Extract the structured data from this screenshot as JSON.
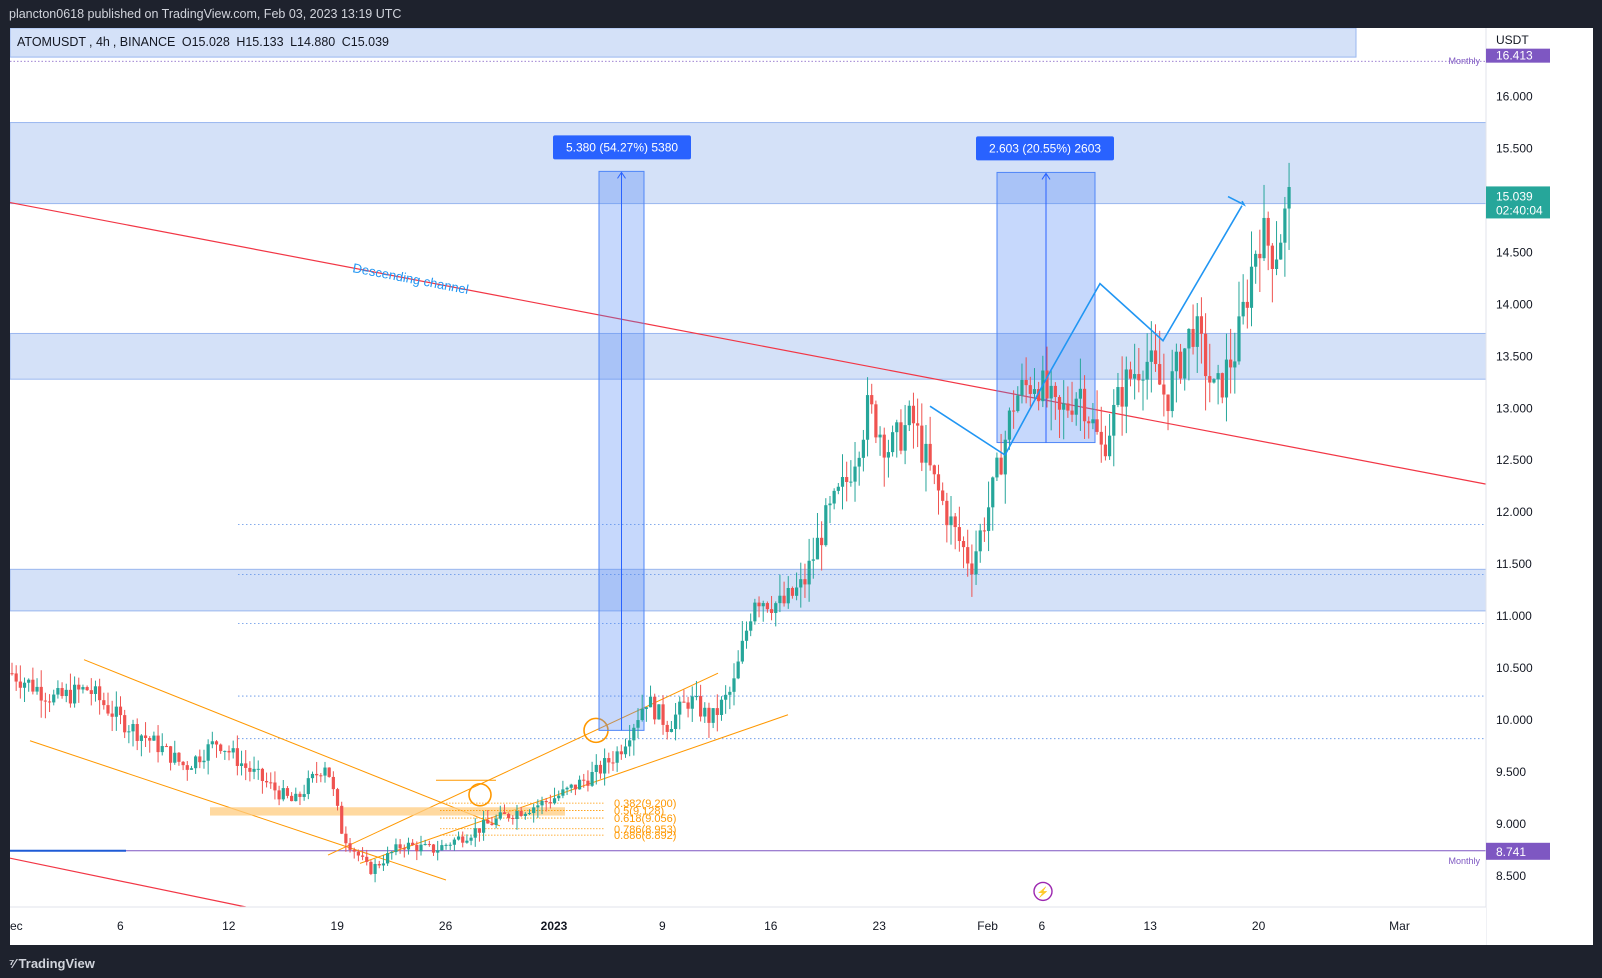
{
  "header": {
    "text": "plancton0618 published on TradingView.com, Feb 03, 2023 13:19 UTC"
  },
  "footer": {
    "brand": "TradingView"
  },
  "legend": {
    "symbol": "ATOMUSDT",
    "interval": "4h",
    "exchange": "BINANCE",
    "open": "O15.028",
    "high": "H15.133",
    "low": "L14.880",
    "close": "C15.039"
  },
  "axis": {
    "currency": "USDT",
    "last_price": "15.039",
    "countdown": "02:40:04",
    "monthly_low_value": "8.741",
    "monthly_high_value": "16.413",
    "monthly_label": "Monthly"
  },
  "colors": {
    "up": "#26a69a",
    "down": "#ef5350",
    "zone_fill": "#c5d7f5",
    "zone_border": "#9ab7ef",
    "trendline": "#f23645",
    "fib": "#ff9800",
    "projection": "#2196f3",
    "measure": "#2962ff",
    "monthly": "#7e57c2"
  },
  "chart_data": {
    "type": "candlestick",
    "symbol": "ATOMUSDT",
    "interval": "4h",
    "y_axis": {
      "min": 8.2,
      "max": 16.66,
      "ticks": [
        "8.500",
        "9.000",
        "9.500",
        "10.000",
        "10.500",
        "11.000",
        "11.500",
        "12.000",
        "12.500",
        "13.000",
        "13.500",
        "14.000",
        "14.500",
        "15.000",
        "15.500",
        "16.000"
      ]
    },
    "x_axis": {
      "ticks": [
        {
          "label": "Dec",
          "pos": 0.0
        },
        {
          "label": "6",
          "pos": 1.0
        },
        {
          "label": "12",
          "pos": 2.0
        },
        {
          "label": "19",
          "pos": 3.0
        },
        {
          "label": "26",
          "pos": 4.0
        },
        {
          "label": "2023",
          "pos": 5.0,
          "bold": true
        },
        {
          "label": "9",
          "pos": 6.0
        },
        {
          "label": "16",
          "pos": 7.0
        },
        {
          "label": "23",
          "pos": 8.0
        },
        {
          "label": "Feb",
          "pos": 9.0
        },
        {
          "label": "6",
          "pos": 9.5
        },
        {
          "label": "13",
          "pos": 10.5
        },
        {
          "label": "20",
          "pos": 11.5
        },
        {
          "label": "Mar",
          "pos": 12.8
        }
      ]
    },
    "price_path": [
      {
        "t": 0.0,
        "p": 10.45
      },
      {
        "t": 0.4,
        "p": 10.2
      },
      {
        "t": 0.7,
        "p": 10.3
      },
      {
        "t": 1.0,
        "p": 10.0
      },
      {
        "t": 1.35,
        "p": 9.75
      },
      {
        "t": 1.6,
        "p": 9.55
      },
      {
        "t": 1.9,
        "p": 9.8
      },
      {
        "t": 2.15,
        "p": 9.55
      },
      {
        "t": 2.4,
        "p": 9.35
      },
      {
        "t": 2.6,
        "p": 9.2
      },
      {
        "t": 2.9,
        "p": 9.6
      },
      {
        "t": 3.05,
        "p": 8.9
      },
      {
        "t": 3.3,
        "p": 8.55
      },
      {
        "t": 3.6,
        "p": 8.8
      },
      {
        "t": 3.9,
        "p": 8.75
      },
      {
        "t": 4.3,
        "p": 8.95
      },
      {
        "t": 4.6,
        "p": 9.1
      },
      {
        "t": 4.9,
        "p": 9.2
      },
      {
        "t": 5.1,
        "p": 9.3
      },
      {
        "t": 5.4,
        "p": 9.5
      },
      {
        "t": 5.6,
        "p": 9.7
      },
      {
        "t": 5.85,
        "p": 10.2
      },
      {
        "t": 6.05,
        "p": 9.95
      },
      {
        "t": 6.25,
        "p": 10.2
      },
      {
        "t": 6.45,
        "p": 10.0
      },
      {
        "t": 6.65,
        "p": 10.3
      },
      {
        "t": 6.85,
        "p": 11.2
      },
      {
        "t": 7.1,
        "p": 11.1
      },
      {
        "t": 7.3,
        "p": 11.3
      },
      {
        "t": 7.5,
        "p": 11.9
      },
      {
        "t": 7.7,
        "p": 12.3
      },
      {
        "t": 7.9,
        "p": 13.0
      },
      {
        "t": 8.1,
        "p": 12.6
      },
      {
        "t": 8.3,
        "p": 12.9
      },
      {
        "t": 8.5,
        "p": 12.3
      },
      {
        "t": 8.7,
        "p": 11.8
      },
      {
        "t": 8.85,
        "p": 11.5
      },
      {
        "t": 9.05,
        "p": 12.2
      },
      {
        "t": 9.25,
        "p": 13.1
      },
      {
        "t": 9.45,
        "p": 13.3
      },
      {
        "t": 9.65,
        "p": 12.9
      },
      {
        "t": 9.85,
        "p": 13.2
      },
      {
        "t": 10.05,
        "p": 12.6
      },
      {
        "t": 10.25,
        "p": 13.2
      },
      {
        "t": 10.45,
        "p": 13.5
      },
      {
        "t": 10.65,
        "p": 13.1
      },
      {
        "t": 10.9,
        "p": 13.8
      },
      {
        "t": 11.1,
        "p": 13.1
      },
      {
        "t": 11.3,
        "p": 13.6
      },
      {
        "t": 11.5,
        "p": 14.7
      },
      {
        "t": 11.65,
        "p": 14.5
      },
      {
        "t": 11.8,
        "p": 15.04
      }
    ],
    "annotations": {
      "measure_1": {
        "label": "5.380 (54.27%) 5380",
        "from": 9.9,
        "to": 15.28
      },
      "measure_2": {
        "label": "2.603 (20.55%) 2603",
        "from": 12.67,
        "to": 15.27
      },
      "trendline_label": "Descending channel",
      "fib_levels": [
        {
          "label": "0.382(9.200)",
          "value": 9.2
        },
        {
          "label": "0.5(9.128)",
          "value": 9.128
        },
        {
          "label": "0.618(9.056)",
          "value": 9.056
        },
        {
          "label": "0.786(8.953)",
          "value": 8.953
        },
        {
          "label": "0.886(8.892)",
          "value": 8.892
        }
      ],
      "zones": [
        {
          "from": 14.97,
          "to": 15.75
        },
        {
          "from": 13.28,
          "to": 13.72
        },
        {
          "from": 11.05,
          "to": 11.45
        },
        {
          "from": 16.38,
          "to": 16.66
        }
      ]
    }
  }
}
